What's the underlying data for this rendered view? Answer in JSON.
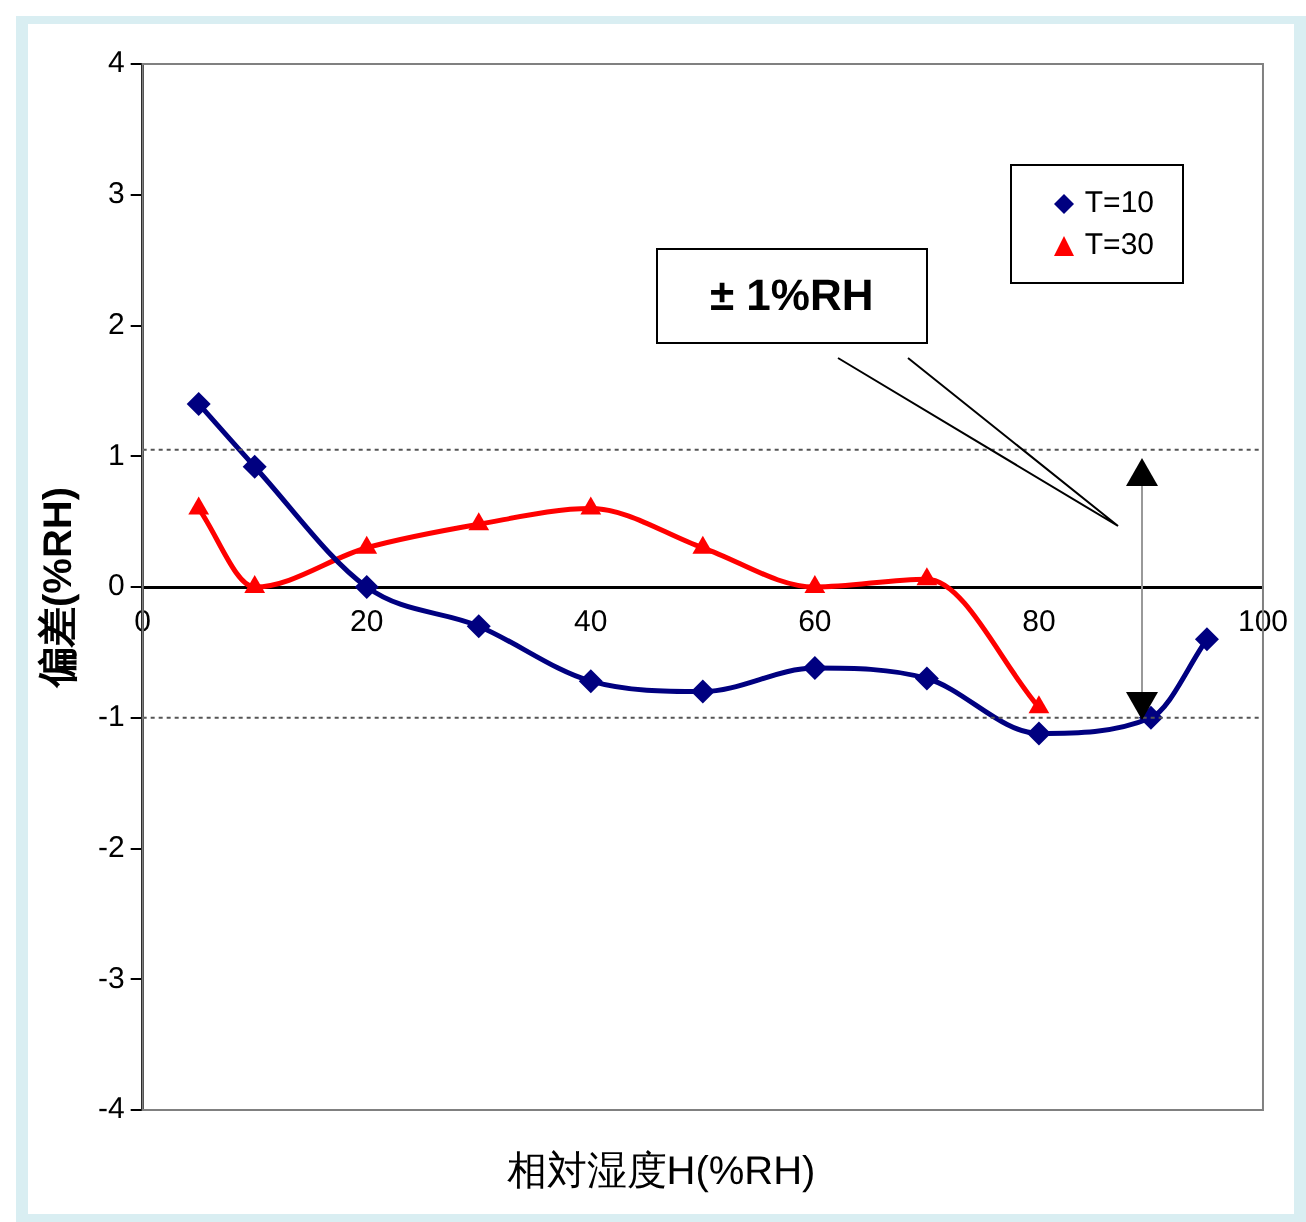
{
  "chart_data": {
    "type": "line",
    "xlabel": "相対湿度H(%RH)",
    "ylabel": "偏差(%RH)",
    "xlim": [
      0,
      100
    ],
    "xticks": [
      0,
      20,
      40,
      60,
      80,
      100
    ],
    "ylim": [
      -4,
      4
    ],
    "yticks": [
      -4,
      -3,
      -2,
      -1,
      0,
      1,
      2,
      3,
      4
    ],
    "legend": "top right",
    "grid": false,
    "annotations": [
      "± 1%RH"
    ],
    "ref_lines": [
      {
        "axis": "y",
        "value": 1.05,
        "color": "#555555",
        "line_style": "dotted"
      },
      {
        "axis": "y",
        "value": -1,
        "color": "#555555",
        "line_style": "dotted"
      }
    ],
    "series": [
      {
        "name": "T=10",
        "color": "#000080",
        "marker": "diamond",
        "x": [
          5,
          10,
          20,
          30,
          40,
          50,
          60,
          70,
          80,
          90,
          95
        ],
        "values": [
          1.4,
          0.92,
          0,
          -0.3,
          -0.72,
          -0.8,
          -0.62,
          -0.7,
          -1.12,
          -1.0,
          -0.4
        ]
      },
      {
        "name": "T=30",
        "color": "#ff0000",
        "marker": "triangle",
        "x": [
          5,
          10,
          20,
          30,
          40,
          50,
          60,
          70,
          80
        ],
        "values": [
          0.6,
          0,
          0.3,
          0.48,
          0.6,
          0.3,
          0,
          0.06,
          -0.92
        ]
      }
    ]
  }
}
